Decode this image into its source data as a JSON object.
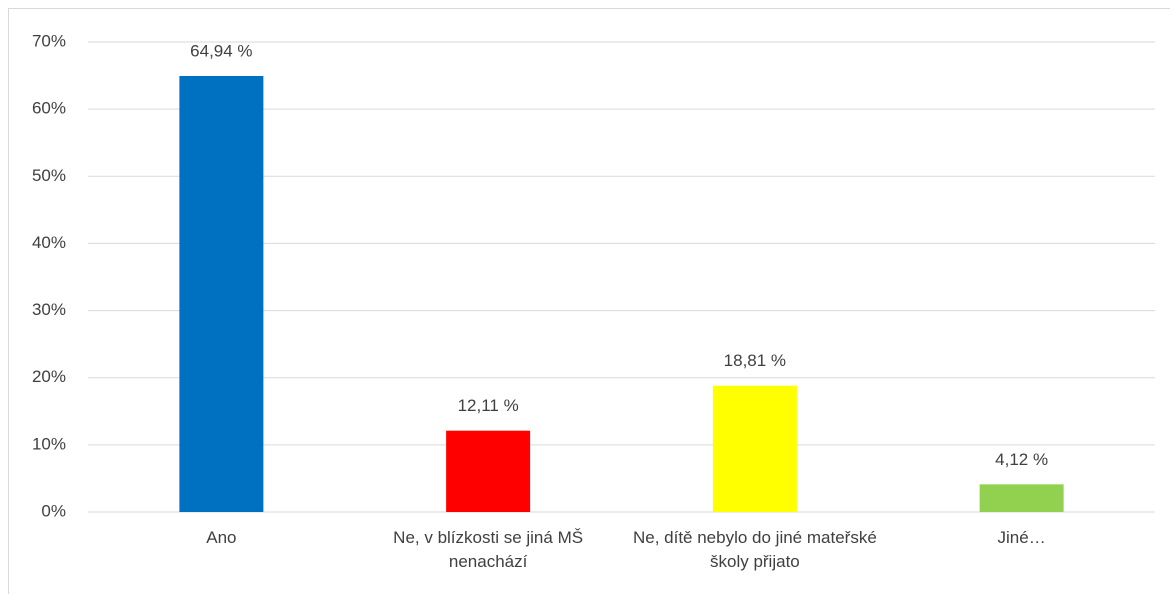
{
  "chart_data": {
    "type": "bar",
    "categories": [
      "Ano",
      "Ne, v blízkosti se jiná MŠ nenachází",
      "Ne, dítě nebylo do jiné mateřské školy přijato",
      "Jiné…"
    ],
    "values": [
      64.94,
      12.11,
      18.81,
      4.12
    ],
    "value_labels": [
      "64,94 %",
      "12,11 %",
      "18,81 %",
      "4,12 %"
    ],
    "colors": [
      "#0070c0",
      "#ff0000",
      "#ffff00",
      "#92d050"
    ],
    "ylim": [
      0,
      70
    ],
    "yticks": [
      {
        "value": 0,
        "label": "0%"
      },
      {
        "value": 10,
        "label": "10%"
      },
      {
        "value": 20,
        "label": "20%"
      },
      {
        "value": 30,
        "label": "30%"
      },
      {
        "value": 40,
        "label": "40%"
      },
      {
        "value": 50,
        "label": "50%"
      },
      {
        "value": 60,
        "label": "60%"
      },
      {
        "value": 70,
        "label": "70%"
      }
    ],
    "grid": true
  }
}
